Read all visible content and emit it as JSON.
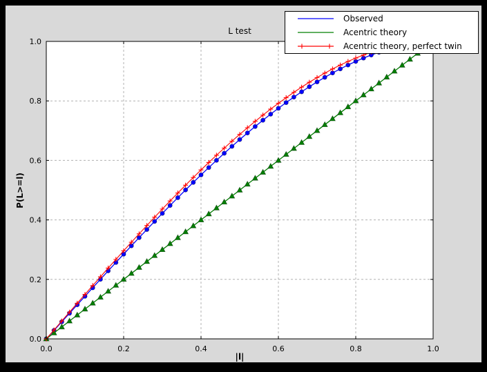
{
  "window": {
    "background": "#000000",
    "figure_background": "#d9d9d9",
    "plot_background": "#ffffff",
    "grid_color": "#b0b0b0",
    "frame_color": "#000000"
  },
  "chart_data": {
    "type": "line",
    "title": "L test",
    "xlabel": "|l|",
    "ylabel": "P(L>=l)",
    "xlim": [
      0.0,
      1.0
    ],
    "ylim": [
      0.0,
      1.0
    ],
    "grid": true,
    "legend_position": "upper right",
    "x_ticks": [
      0.0,
      0.2,
      0.4,
      0.6,
      0.8,
      1.0
    ],
    "x_tick_labels": [
      "0.0",
      "0.2",
      "0.4",
      "0.6",
      "0.8",
      "1.0"
    ],
    "y_ticks": [
      0.0,
      0.2,
      0.4,
      0.6,
      0.8,
      1.0
    ],
    "y_tick_labels": [
      "0.0",
      "0.2",
      "0.4",
      "0.6",
      "0.8",
      "1.0"
    ],
    "x": [
      0,
      0.02,
      0.04,
      0.06,
      0.08,
      0.1,
      0.12,
      0.14,
      0.16,
      0.18,
      0.2,
      0.22,
      0.24,
      0.26,
      0.28,
      0.3,
      0.32,
      0.34,
      0.36,
      0.38,
      0.4,
      0.42,
      0.44,
      0.46,
      0.48,
      0.5,
      0.52,
      0.54,
      0.56,
      0.58,
      0.6,
      0.62,
      0.64,
      0.66,
      0.68,
      0.7,
      0.72,
      0.74,
      0.76,
      0.78,
      0.8,
      0.82,
      0.84,
      0.86,
      0.88,
      0.9,
      0.92,
      0.94,
      0.96,
      0.98,
      1
    ],
    "series": [
      {
        "name": "Observed",
        "color": "#0000ff",
        "marker": "circle",
        "legend_marker": false,
        "values": [
          0,
          0.0286,
          0.0573,
          0.086,
          0.1146,
          0.1432,
          0.1717,
          0.2002,
          0.2286,
          0.2568,
          0.2848,
          0.3127,
          0.3403,
          0.3677,
          0.3949,
          0.4218,
          0.4484,
          0.4746,
          0.5006,
          0.5261,
          0.5512,
          0.5759,
          0.6002,
          0.6239,
          0.6472,
          0.67,
          0.6922,
          0.7139,
          0.735,
          0.7554,
          0.7752,
          0.7943,
          0.8128,
          0.8306,
          0.8476,
          0.8638,
          0.8793,
          0.8939,
          0.9077,
          0.9207,
          0.9328,
          0.944,
          0.9542,
          0.9636,
          0.9719,
          0.9792,
          0.9855,
          0.9908,
          0.9949,
          0.998,
          1
        ]
      },
      {
        "name": "Acentric theory",
        "color": "#007f00",
        "marker": "triangle",
        "legend_marker": false,
        "values": [
          0,
          0.02,
          0.04,
          0.06,
          0.08,
          0.1,
          0.12,
          0.14,
          0.16,
          0.18,
          0.2,
          0.22,
          0.24,
          0.26,
          0.28,
          0.3,
          0.32,
          0.34,
          0.36,
          0.38,
          0.4,
          0.42,
          0.44,
          0.46,
          0.48,
          0.5,
          0.52,
          0.54,
          0.56,
          0.58,
          0.6,
          0.62,
          0.64,
          0.66,
          0.68,
          0.7,
          0.72,
          0.74,
          0.76,
          0.78,
          0.8,
          0.82,
          0.84,
          0.86,
          0.88,
          0.9,
          0.92,
          0.94,
          0.96,
          0.98,
          1
        ]
      },
      {
        "name": "Acentric theory, perfect twin",
        "color": "#ff0000",
        "marker": "plus",
        "legend_marker": true,
        "values": [
          0,
          0.03,
          0.06,
          0.0899,
          0.1197,
          0.1495,
          0.1791,
          0.2086,
          0.238,
          0.2671,
          0.296,
          0.3247,
          0.3531,
          0.3812,
          0.409,
          0.4365,
          0.4636,
          0.4903,
          0.5167,
          0.5426,
          0.568,
          0.593,
          0.6174,
          0.6413,
          0.6647,
          0.6875,
          0.7097,
          0.7313,
          0.7522,
          0.7724,
          0.792,
          0.8108,
          0.8289,
          0.8463,
          0.8628,
          0.8785,
          0.8934,
          0.9074,
          0.9205,
          0.9327,
          0.944,
          0.9543,
          0.9636,
          0.972,
          0.9793,
          0.9855,
          0.9906,
          0.9947,
          0.9976,
          0.9994,
          1
        ]
      }
    ]
  }
}
